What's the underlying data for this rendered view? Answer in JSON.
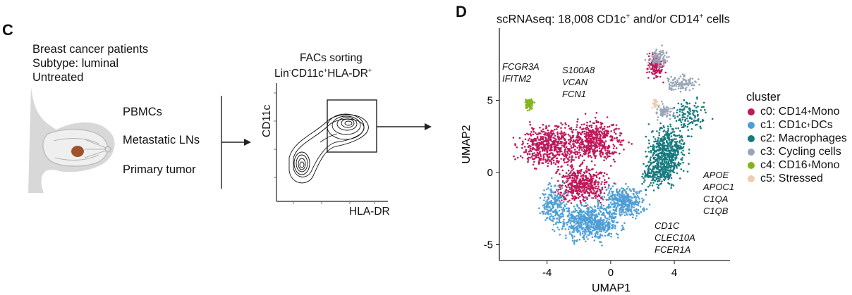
{
  "panel_c": {
    "letter": "C",
    "patients": [
      "Breast cancer patients",
      "Subtype: luminal",
      "Untreated"
    ],
    "samples": [
      "PBMCs",
      "Metastatic LNs",
      "Primary tumor"
    ],
    "sorting_title": "FACs sorting",
    "sorting_gate": {
      "p1": "Lin",
      "s1": "-",
      "p2": "CD11c",
      "s2": "+",
      "p3": "HLA-DR",
      "s3": "+"
    },
    "facs_y_label": "CD11c",
    "facs_x_label": "HLA-DR"
  },
  "panel_d": {
    "letter": "D",
    "title": {
      "pre": "scRNAseq: 18,008 CD1c",
      "sup1": "+",
      "mid": " and/or CD14",
      "sup2": "+",
      "post": " cells"
    },
    "annotations": [
      {
        "lines": [
          "FCGR3A",
          "IFITM2"
        ]
      },
      {
        "lines": [
          "S100A8",
          "VCAN",
          "FCN1"
        ]
      },
      {
        "lines": [
          "APOE",
          "APOC1",
          "C1QA",
          "C1QB"
        ]
      },
      {
        "lines": [
          "CD1C",
          "CLEC10A",
          "FCER1A"
        ]
      }
    ],
    "legend_title": "cluster",
    "legend": [
      {
        "pre": "c0: CD14",
        "sup": "+",
        "post": " Mono",
        "color": "#c0185b"
      },
      {
        "pre": "c1: CD1c",
        "sup": "+",
        "post": " DCs",
        "color": "#4f9fd6"
      },
      {
        "pre": "c2: Macrophages",
        "sup": "",
        "post": "",
        "color": "#167a7f"
      },
      {
        "pre": "c3: Cycling cells",
        "sup": "",
        "post": "",
        "color": "#9aa6b8"
      },
      {
        "pre": "c4: CD16",
        "sup": "+",
        "post": " Mono",
        "color": "#82b519"
      },
      {
        "pre": "c5: Stressed",
        "sup": "",
        "post": "",
        "color": "#efccb0"
      }
    ]
  },
  "chart_data": {
    "type": "scatter",
    "title": "scRNAseq: 18,008 CD1c+ and/or CD14+ cells",
    "xlabel": "UMAP1",
    "ylabel": "UMAP2",
    "x_ticks": [
      -4,
      0,
      4
    ],
    "y_ticks": [
      5,
      0,
      -5
    ],
    "xlim": [
      -7,
      7.5
    ],
    "ylim": [
      -6.1,
      10
    ],
    "clusters": [
      {
        "name": "c0: CD14+ Mono",
        "color": "#c0185b",
        "centers": [
          [
            -3.8,
            1.8
          ],
          [
            -1.0,
            2.2
          ],
          [
            -1.8,
            -0.8
          ],
          [
            2.8,
            7.4
          ]
        ]
      },
      {
        "name": "c1: CD1c+ DCs",
        "color": "#4f9fd6",
        "centers": [
          [
            -1.3,
            -3.4
          ],
          [
            0.8,
            -2.0
          ],
          [
            -3.6,
            -2.2
          ]
        ]
      },
      {
        "name": "c2: Macrophages",
        "color": "#167a7f",
        "centers": [
          [
            3.6,
            1.5
          ],
          [
            3.0,
            0.0
          ],
          [
            5.0,
            4.0
          ]
        ]
      },
      {
        "name": "c3: Cycling cells",
        "color": "#9aa6b8",
        "centers": [
          [
            3.0,
            7.9
          ],
          [
            4.5,
            6.2
          ],
          [
            3.4,
            4.2
          ]
        ]
      },
      {
        "name": "c4: CD16+ Mono",
        "color": "#82b519",
        "centers": [
          [
            -5.1,
            4.7
          ]
        ]
      },
      {
        "name": "c5: Stressed",
        "color": "#efccb0",
        "centers": [
          [
            2.8,
            4.8
          ]
        ]
      }
    ]
  }
}
